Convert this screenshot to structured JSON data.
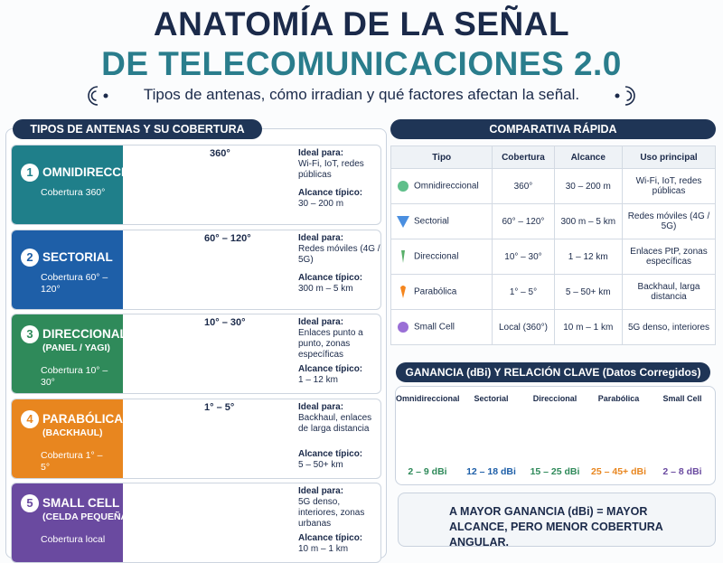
{
  "header": {
    "title_line1": "ANATOMÍA DE LA SEÑAL",
    "title_line2": "DE TELECOMUNICACIONES 2.0",
    "subtitle": "Tipos de antenas, cómo irradian y qué factores afectan la señal."
  },
  "antennas": {
    "title": "TIPOS DE ANTENAS Y SU COBERTURA",
    "ideal_label": "Ideal para:",
    "range_label": "Alcance típico:",
    "items": [
      {
        "number": "1",
        "name": "OMNIDIRECCIONAL",
        "coverage": "Cobertura 360°",
        "beam": "360°",
        "ideal": "Wi-Fi, IoT, redes públicas",
        "range": "30 – 200 m"
      },
      {
        "number": "2",
        "name": "SECTORIAL",
        "coverage": "Cobertura 60° – 120°",
        "beam": "60° – 120°",
        "ideal": "Redes móviles (4G / 5G)",
        "range": "300 m – 5 km"
      },
      {
        "number": "3",
        "name": "DIRECCIONAL",
        "sub": "(PANEL / YAGI)",
        "coverage": "Cobertura 10° – 30°",
        "beam": "10° – 30°",
        "ideal": "Enlaces punto a punto, zonas específicas",
        "range": "1 – 12 km"
      },
      {
        "number": "4",
        "name": "PARABÓLICA",
        "sub": "(BACKHAUL)",
        "coverage": "Cobertura 1° – 5°",
        "beam": "1° – 5°",
        "ideal": "Backhaul, enlaces de larga distancia",
        "range": "5 – 50+ km"
      },
      {
        "number": "5",
        "name": "SMALL CELL",
        "sub": "(CELDA PEQUEÑA)",
        "coverage": "Cobertura local",
        "ideal": "5G denso, interiores, zonas urbanas",
        "range": "10 m – 1 km"
      }
    ]
  },
  "comparison": {
    "title": "COMPARATIVA RÁPIDA",
    "header": [
      "Tipo",
      "Cobertura",
      "Alcance",
      "Uso principal"
    ],
    "rows": [
      [
        "Omnidireccional",
        "360°",
        "30 – 200 m",
        "Wi-Fi, IoT, redes públicas"
      ],
      [
        "Sectorial",
        "60° – 120°",
        "300 m – 5 km",
        "Redes móviles (4G / 5G)"
      ],
      [
        "Direccional",
        "10° – 30°",
        "1 – 12 km",
        "Enlaces PtP, zonas específicas"
      ],
      [
        "Parabólica",
        "1° – 5°",
        "5 – 50+ km",
        "Backhaul, larga distancia"
      ],
      [
        "Small Cell",
        "Local (360°)",
        "10 m – 1 km",
        "5G denso, interiores"
      ]
    ]
  },
  "gain": {
    "title": "GANANCIA (dBi) Y RELACIÓN CLAVE (Datos Corregidos)",
    "items": [
      {
        "name": "Omnidireccional",
        "gain": "2 – 9 dBi"
      },
      {
        "name": "Sectorial",
        "gain": "12 – 18 dBi"
      },
      {
        "name": "Direccional",
        "gain": "15 – 25 dBi"
      },
      {
        "name": "Parabólica",
        "gain": "25 – 45+ dBi"
      },
      {
        "name": "Small Cell",
        "gain": "2 – 8 dBi"
      }
    ],
    "note": "A MAYOR GANANCIA (dBi) = MAYOR ALCANCE, PERO MENOR COBERTURA ANGULAR."
  }
}
